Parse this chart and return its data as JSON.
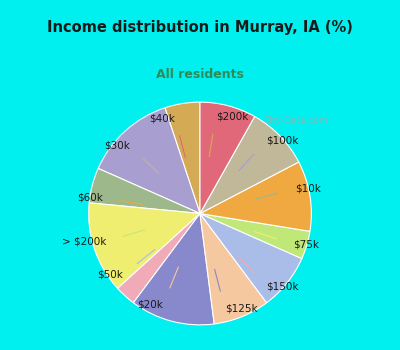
{
  "title": "Income distribution in Murray, IA (%)",
  "subtitle": "All residents",
  "title_color": "#1a1a1a",
  "subtitle_color": "#2e8b57",
  "bg_cyan": "#00f0f0",
  "bg_chart": "#e0f5ee",
  "labels": [
    "$200k",
    "$100k",
    "$10k",
    "$75k",
    "$150k",
    "$125k",
    "$20k",
    "$50k",
    "> $200k",
    "$60k",
    "$30k",
    "$40k"
  ],
  "values": [
    5,
    13,
    5,
    13,
    3,
    12,
    8,
    8,
    4,
    10,
    9,
    8
  ],
  "colors": [
    "#d4aa55",
    "#a89ecf",
    "#9db88a",
    "#f0ee70",
    "#f0aab8",
    "#8888cc",
    "#f5c8a0",
    "#aabce8",
    "#c0e878",
    "#f0a840",
    "#c0b898",
    "#e06878"
  ],
  "line_colors": [
    "#d4aa55",
    "#a89ecf",
    "#9db88a",
    "#f0ee70",
    "#f0aab8",
    "#8888cc",
    "#f5c8a0",
    "#aabce8",
    "#c0e878",
    "#f0a840",
    "#c0b898",
    "#e06878"
  ],
  "label_font_size": 7.5,
  "watermark": "City-Data.com"
}
